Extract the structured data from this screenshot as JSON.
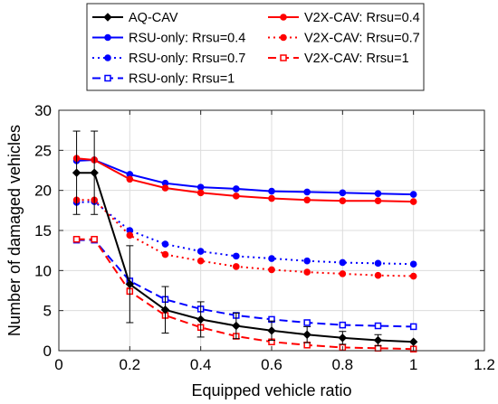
{
  "chart_data": {
    "type": "line",
    "xlabel": "Equipped vehicle ratio",
    "ylabel": "Number of damaged vehicles",
    "xlim": [
      0,
      1.2
    ],
    "ylim": [
      0,
      30
    ],
    "xticks": [
      "0",
      "0.2",
      "0.4",
      "0.6",
      "0.8",
      "1",
      "1.2"
    ],
    "yticks": [
      "0",
      "5",
      "10",
      "15",
      "20",
      "25",
      "30"
    ],
    "grid": true,
    "legend_position": "top",
    "series": [
      {
        "name": "AQ-CAV",
        "color": "#000000",
        "dash": "solid",
        "marker": "diamond",
        "x": [
          0.05,
          0.1,
          0.2,
          0.3,
          0.4,
          0.5,
          0.6,
          0.7,
          0.8,
          0.9,
          1.0
        ],
        "y": [
          22.2,
          22.2,
          8.3,
          5.1,
          3.9,
          3.1,
          2.5,
          2.0,
          1.6,
          1.3,
          1.1
        ],
        "err": [
          5.2,
          5.2,
          4.8,
          2.9,
          2.2,
          1.6,
          1.2,
          1.0,
          0.8,
          0.7,
          0.0
        ]
      },
      {
        "name": "RSU-only: Rrsu=0.4",
        "color": "#0000ff",
        "dash": "solid",
        "marker": "dot",
        "x": [
          0.05,
          0.1,
          0.2,
          0.3,
          0.4,
          0.5,
          0.6,
          0.7,
          0.8,
          0.9,
          1.0
        ],
        "y": [
          23.7,
          23.8,
          22.0,
          20.9,
          20.4,
          20.2,
          19.9,
          19.8,
          19.7,
          19.6,
          19.5
        ]
      },
      {
        "name": "RSU-only: Rrsu=0.7",
        "color": "#0000ff",
        "dash": "dotted",
        "marker": "dot",
        "x": [
          0.05,
          0.1,
          0.2,
          0.3,
          0.4,
          0.5,
          0.6,
          0.7,
          0.8,
          0.9,
          1.0
        ],
        "y": [
          18.5,
          18.6,
          15.0,
          13.3,
          12.4,
          11.8,
          11.5,
          11.2,
          11.0,
          10.9,
          10.8
        ]
      },
      {
        "name": "RSU-only: Rrsu=1",
        "color": "#0000ff",
        "dash": "dashed",
        "marker": "square",
        "x": [
          0.05,
          0.1,
          0.2,
          0.3,
          0.4,
          0.5,
          0.6,
          0.7,
          0.8,
          0.9,
          1.0
        ],
        "y": [
          13.8,
          13.8,
          8.7,
          6.4,
          5.2,
          4.4,
          3.9,
          3.5,
          3.2,
          3.1,
          3.0
        ]
      },
      {
        "name": "V2X-CAV: Rrsu=0.4",
        "color": "#ff0000",
        "dash": "solid",
        "marker": "dot",
        "x": [
          0.05,
          0.1,
          0.2,
          0.3,
          0.4,
          0.5,
          0.6,
          0.7,
          0.8,
          0.9,
          1.0
        ],
        "y": [
          24.0,
          23.8,
          21.4,
          20.3,
          19.7,
          19.3,
          19.0,
          18.8,
          18.7,
          18.7,
          18.6
        ]
      },
      {
        "name": "V2X-CAV: Rrsu=0.7",
        "color": "#ff0000",
        "dash": "dotted",
        "marker": "dot",
        "x": [
          0.05,
          0.1,
          0.2,
          0.3,
          0.4,
          0.5,
          0.6,
          0.7,
          0.8,
          0.9,
          1.0
        ],
        "y": [
          18.8,
          18.8,
          14.4,
          12.0,
          11.2,
          10.5,
          10.1,
          9.8,
          9.6,
          9.4,
          9.3
        ]
      },
      {
        "name": "V2X-CAV: Rrsu=1",
        "color": "#ff0000",
        "dash": "dashed",
        "marker": "square",
        "x": [
          0.05,
          0.1,
          0.2,
          0.3,
          0.4,
          0.5,
          0.6,
          0.7,
          0.8,
          0.9,
          1.0
        ],
        "y": [
          13.9,
          13.9,
          7.4,
          4.4,
          2.9,
          1.8,
          1.1,
          0.7,
          0.4,
          0.3,
          0.2
        ]
      }
    ]
  }
}
